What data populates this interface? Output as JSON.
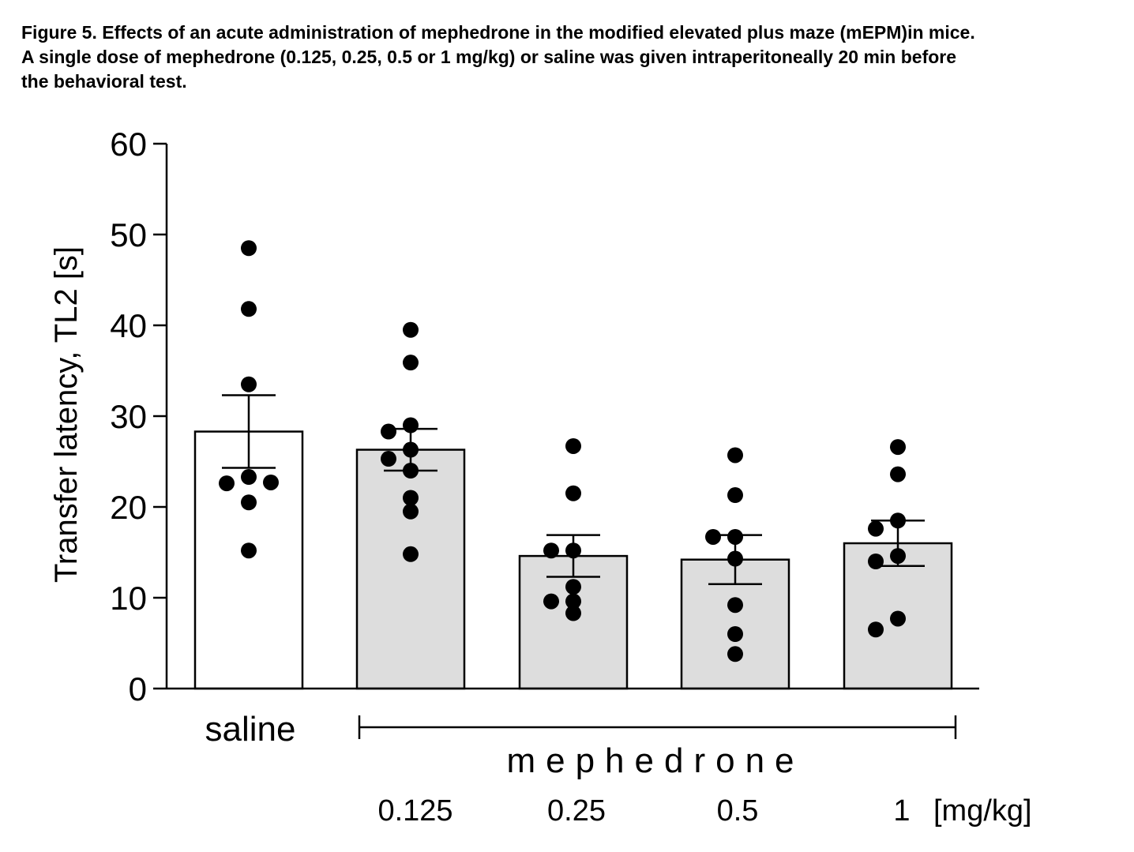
{
  "caption": {
    "line1": "Figure 5. Effects of an acute administration of mephedrone in the modified elevated plus maze (mEPM)in mice.",
    "line2": "A single dose of mephedrone (0.125, 0.25, 0.5 or 1 mg/kg) or saline was given intraperitoneally 20 min before",
    "line3": "the behavioral test."
  },
  "chart_data": {
    "type": "bar",
    "title": "",
    "xlabel": "",
    "ylabel": "Transfer latency, TL2 [s]",
    "ylim": [
      0,
      60
    ],
    "yticks": [
      "0",
      "10",
      "20",
      "30",
      "40",
      "50",
      "60"
    ],
    "categories": [
      "saline",
      "0.125",
      "0.25",
      "0.5",
      "1"
    ],
    "dose_unit": "[mg/kg]",
    "group_label": "mephedrone",
    "grid": false,
    "bar_colors": [
      "#ffffff",
      "#dddddd",
      "#dddddd",
      "#dddddd",
      "#dddddd"
    ],
    "values": [
      28.3,
      26.3,
      14.6,
      14.2,
      16.0
    ],
    "sem": [
      4.0,
      2.3,
      2.3,
      2.7,
      2.5
    ],
    "points": [
      [
        48.5,
        41.8,
        33.5,
        23.3,
        22.6,
        22.7,
        20.5,
        15.2
      ],
      [
        39.5,
        35.9,
        29.0,
        28.3,
        26.3,
        25.3,
        24.0,
        21.0,
        19.5,
        14.8
      ],
      [
        26.7,
        21.5,
        15.2,
        15.2,
        11.2,
        9.6,
        9.6,
        8.3
      ],
      [
        25.7,
        21.3,
        16.7,
        16.7,
        14.3,
        9.2,
        6.0,
        3.8
      ],
      [
        26.6,
        23.6,
        18.5,
        17.6,
        14.6,
        14.0,
        7.7,
        6.5
      ]
    ]
  }
}
